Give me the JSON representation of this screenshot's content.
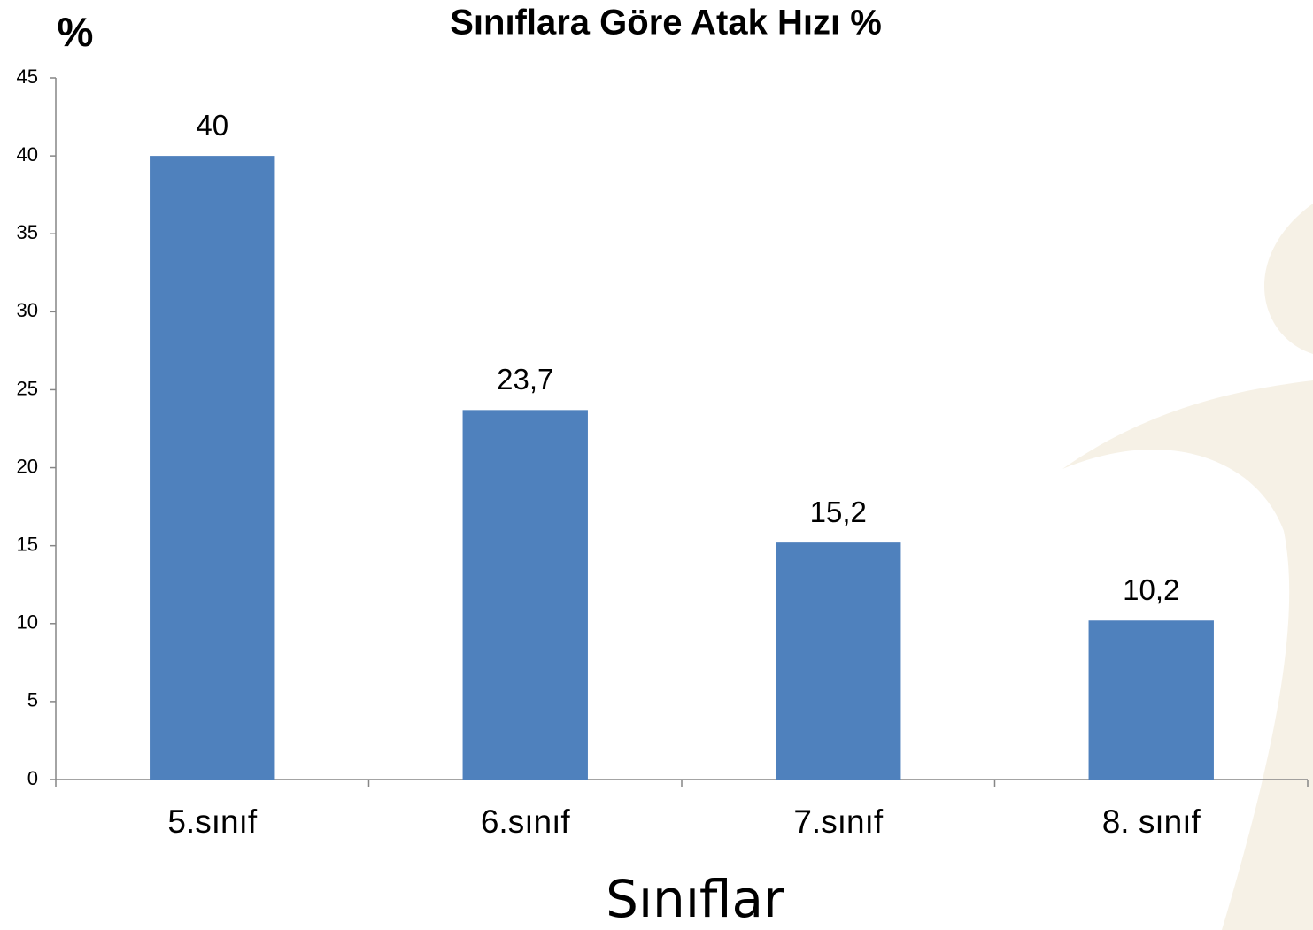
{
  "chart_data": {
    "type": "bar",
    "title": "Sınıflara Göre Atak Hızı %",
    "ylabel": "%",
    "xlabel": "Sınıflar",
    "categories": [
      "5.sınıf",
      "6.sınıf",
      "7.sınıf",
      "8. sınıf"
    ],
    "values": [
      40,
      23.7,
      15.2,
      10.2
    ],
    "value_labels": [
      "40",
      "23,7",
      "15,2",
      "10,2"
    ],
    "color": "#4f81bd",
    "ylim": [
      0,
      45
    ],
    "yticks": [
      0,
      5,
      10,
      15,
      20,
      25,
      30,
      35,
      40,
      45
    ],
    "grid": false
  }
}
